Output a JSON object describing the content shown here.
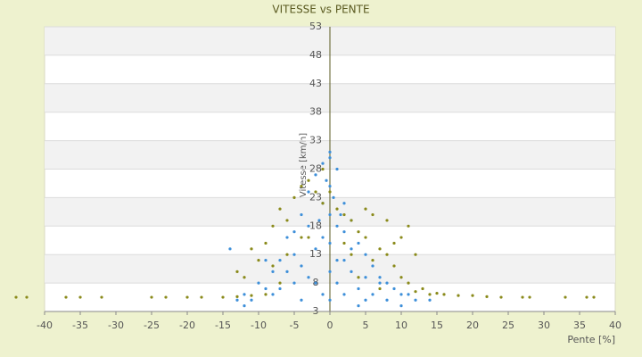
{
  "chart_data": {
    "type": "scatter",
    "title": "VITESSE vs PENTE",
    "x_label": "Pente [%]",
    "y_label": "Vitesse [km/h]",
    "xlim": [
      -40,
      40
    ],
    "xticks": [
      -40,
      -35,
      -30,
      -25,
      -20,
      -15,
      -10,
      -5,
      0,
      5,
      10,
      15,
      20,
      25,
      30,
      35,
      40
    ],
    "ylim": [
      3,
      53
    ],
    "yticks": [
      3,
      8,
      13,
      18,
      23,
      28,
      33,
      38,
      43,
      48,
      53
    ],
    "grid": true,
    "series": [
      {
        "color": "#3d8fd9",
        "x": [
          0,
          0,
          1,
          -1,
          0,
          2,
          -2,
          3,
          -3,
          1,
          -1,
          0,
          4,
          -4,
          5,
          -5,
          6,
          -6,
          7,
          -7,
          8,
          -8,
          10,
          -10,
          12,
          -12,
          -14,
          0,
          1,
          -2,
          -3,
          2,
          3,
          -4,
          -5,
          4,
          5,
          -6,
          6,
          -7,
          7,
          -8,
          9,
          -9,
          11,
          -11,
          14,
          -13,
          0,
          1,
          -1,
          2,
          -2,
          3,
          -3,
          0.5,
          -0.5,
          1.5,
          -1.5,
          0,
          -1,
          2,
          -5,
          5,
          8,
          -9,
          4,
          -4,
          10,
          -12
        ],
        "values": [
          25,
          20,
          18,
          22,
          15,
          12,
          14,
          10,
          9,
          8,
          6,
          5,
          7,
          11,
          9,
          13,
          6,
          10,
          8,
          7,
          5,
          6,
          6,
          8,
          5,
          6,
          14,
          30,
          28,
          27,
          24,
          22,
          19,
          20,
          17,
          15,
          13,
          16,
          11,
          12,
          9,
          10,
          7,
          7,
          6,
          5,
          5,
          5,
          10,
          12,
          16,
          6,
          8,
          14,
          18,
          23,
          26,
          20,
          19,
          31,
          29,
          17,
          8,
          5,
          8,
          12,
          4,
          5,
          4,
          4
        ]
      },
      {
        "color": "#8a8a1a",
        "x": [
          -44,
          -42.5,
          -37,
          -35,
          -32,
          -25,
          -23,
          -20,
          -18,
          -15,
          -13,
          -11,
          -9,
          -10,
          -11,
          -8,
          -7,
          -6,
          -5,
          -4,
          -3,
          -2,
          -1,
          1,
          2,
          3,
          4,
          5,
          7,
          8,
          9,
          10,
          11,
          12,
          14,
          16,
          18,
          20,
          22,
          24,
          27,
          28,
          33,
          36,
          37,
          -12,
          -9,
          -6,
          -3,
          3,
          6,
          9,
          11,
          12,
          10,
          6,
          -1,
          -4,
          -8,
          4,
          7,
          13,
          15,
          -13,
          -7,
          0,
          2,
          8,
          5
        ],
        "values": [
          5.5,
          5.5,
          5.5,
          5.5,
          5.5,
          5.5,
          5.5,
          5.5,
          5.5,
          5.5,
          5.6,
          5.8,
          6,
          12,
          14,
          18,
          21,
          19,
          23,
          25,
          26,
          24,
          22,
          21,
          20,
          19,
          17,
          16,
          14,
          13,
          11,
          9,
          8,
          6.5,
          6,
          6,
          5.8,
          5.8,
          5.6,
          5.5,
          5.5,
          5.5,
          5.5,
          5.5,
          5.5,
          9,
          15,
          13,
          16,
          13,
          12,
          15,
          18,
          13,
          16,
          20,
          28,
          16,
          11,
          9,
          7,
          7,
          6.2,
          10,
          8,
          24,
          15,
          19,
          21
        ]
      }
    ]
  }
}
